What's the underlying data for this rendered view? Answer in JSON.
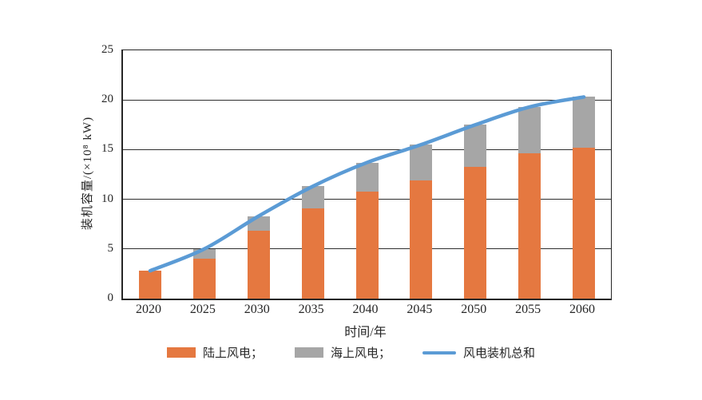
{
  "chart_data": {
    "type": "bar",
    "stacked": true,
    "overlay": "line",
    "categories": [
      "2020",
      "2025",
      "2030",
      "2035",
      "2040",
      "2045",
      "2050",
      "2055",
      "2060"
    ],
    "series": [
      {
        "name": "陆上风电",
        "type": "bar",
        "color": "#E57840",
        "values": [
          2.8,
          4.0,
          6.8,
          9.1,
          10.8,
          11.9,
          13.3,
          14.6,
          15.2
        ]
      },
      {
        "name": "海上风电",
        "type": "bar",
        "color": "#A6A6A6",
        "values": [
          0.0,
          1.0,
          1.5,
          2.2,
          2.9,
          3.6,
          4.2,
          4.7,
          5.1
        ]
      },
      {
        "name": "风电装机总和",
        "type": "line",
        "color": "#5B9BD5",
        "values": [
          2.8,
          5.0,
          8.3,
          11.3,
          13.7,
          15.5,
          17.5,
          19.3,
          20.3
        ]
      }
    ],
    "legend_labels": [
      "陆上风电；",
      "海上风电；",
      "风电装机总和"
    ],
    "xlabel": "时间/年",
    "ylabel": "装机容量/(×10⁸ kW)",
    "ylim": [
      0,
      25
    ],
    "yticks": [
      0,
      5,
      10,
      15,
      20,
      25
    ],
    "grid": "horizontal",
    "grid_color": "#2e2e2e",
    "border_color": "#262626",
    "legend_position": "bottom"
  }
}
